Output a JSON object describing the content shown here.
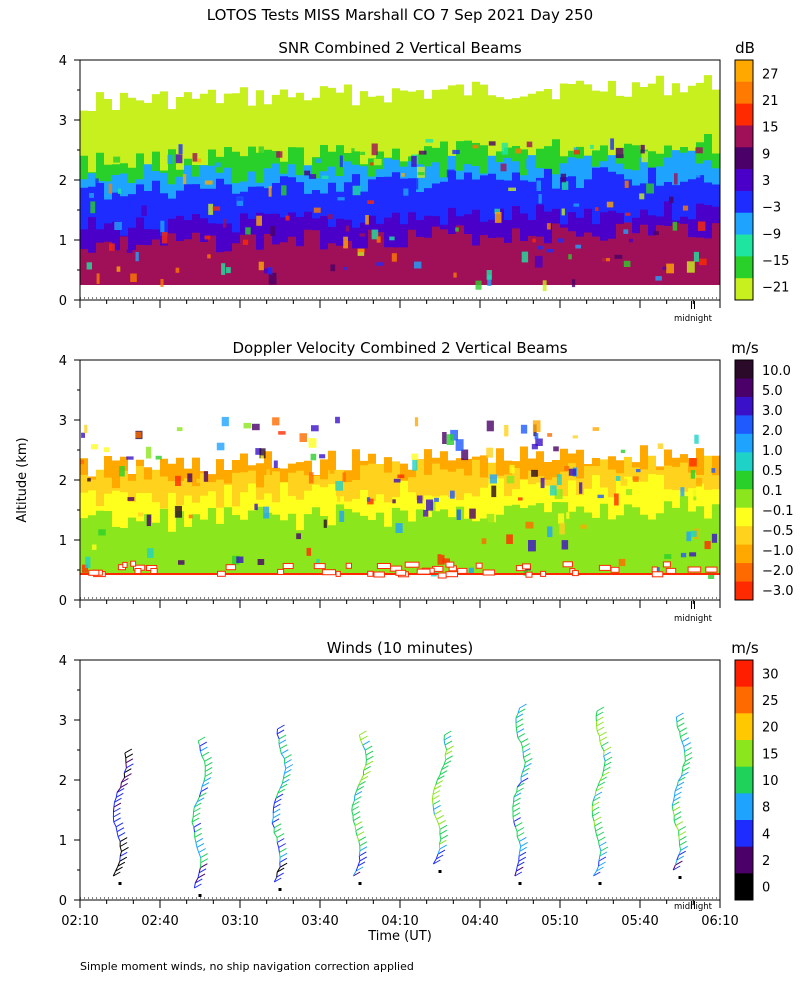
{
  "figure": {
    "title": "LOTOS Tests MISS Marshall CO   7 Sep 2021 Day 250",
    "y_axis_label": "Altitude (km)",
    "footnote": "Simple moment winds, no ship navigation correction applied"
  },
  "chart_data": [
    {
      "type": "heatmap",
      "title": "SNR Combined 2 Vertical Beams",
      "ylim": [
        0,
        4
      ],
      "yticks": [
        "0",
        "1",
        "2",
        "3",
        "4"
      ],
      "xlim": [
        "02:10",
        "06:10"
      ],
      "marker_label": "midnight",
      "colorbar": {
        "unit": "dB",
        "labels": [
          "27",
          "21",
          "15",
          "9",
          "3",
          "−3",
          "−9",
          "−15",
          "−21"
        ],
        "colors": [
          "#ffa800",
          "#ff7a00",
          "#ff2a00",
          "#a01058",
          "#4a0068",
          "#4a00c8",
          "#1e2cff",
          "#1ea4ff",
          "#1ee6a0",
          "#2ad02a",
          "#c8f01e"
        ]
      },
      "layers": [
        {
          "label": "-21 to -15 dB",
          "color": "#c8f01e",
          "alt_top_km": 3.3
        },
        {
          "label": "-15 to -9 dB",
          "color": "#2ad02a",
          "alt_top_km": 2.3
        },
        {
          "label": "-9 to -3 dB",
          "color": "#1ea4ff",
          "alt_top_km": 2.05
        },
        {
          "label": "-3 to 3 dB",
          "color": "#1e2cff",
          "alt_top_km": 1.8
        },
        {
          "label": "3 to 9 dB",
          "color": "#4a00c8",
          "alt_top_km": 1.2
        },
        {
          "label": "9 to 15 dB",
          "color": "#a01058",
          "alt_top_km": 0.9
        }
      ]
    },
    {
      "type": "heatmap",
      "title": "Doppler Velocity Combined 2 Vertical Beams",
      "ylim": [
        0,
        4
      ],
      "yticks": [
        "0",
        "1",
        "2",
        "3",
        "4"
      ],
      "xlim": [
        "02:10",
        "06:10"
      ],
      "marker_label": "midnight",
      "colorbar": {
        "unit": "m/s",
        "labels": [
          "10.0",
          "5.0",
          "3.0",
          "2.0",
          "1.0",
          "0.5",
          "0.1",
          "−0.1",
          "−0.5",
          "−1.0",
          "−2.0",
          "−3.0"
        ],
        "colors": [
          "#2a0a28",
          "#4a0068",
          "#3a10c8",
          "#1e5aff",
          "#1ea4ff",
          "#1ed2c8",
          "#2ad02a",
          "#8ce61e",
          "#ffff1e",
          "#ffd21e",
          "#ffa800",
          "#ff6a00",
          "#ff2a00"
        ]
      },
      "layers": [
        {
          "label": "-0.5 to -1.0 m/s",
          "color": "#ffa800",
          "alt_top_km": 2.2
        },
        {
          "label": "-0.1 to -0.5 m/s",
          "color": "#ffd21e",
          "alt_top_km": 2.0
        },
        {
          "label": "0.1 to -0.1 m/s",
          "color": "#ffff1e",
          "alt_top_km": 1.7
        },
        {
          "label": "0.5 to 0.1 m/s",
          "color": "#8ce61e",
          "alt_top_km": 1.3
        }
      ]
    },
    {
      "type": "scatter",
      "title": "Winds (10 minutes)",
      "ylim": [
        0,
        4
      ],
      "yticks": [
        "0",
        "1",
        "2",
        "3",
        "4"
      ],
      "xlim": [
        "02:10",
        "06:10"
      ],
      "xticks": [
        "02:10",
        "02:40",
        "03:10",
        "03:40",
        "04:10",
        "04:40",
        "05:10",
        "05:40",
        "06:10"
      ],
      "xlabel": "Time (UT)",
      "marker_label": "midnight",
      "colorbar": {
        "unit": "m/s",
        "labels": [
          "30",
          "25",
          "20",
          "15",
          "10",
          "8",
          "4",
          "2",
          "0"
        ],
        "colors": [
          "#ff1e00",
          "#ff6a00",
          "#ffc800",
          "#8ce61e",
          "#1ed25a",
          "#1ea4ff",
          "#1e2cff",
          "#4a0068",
          "#000000"
        ]
      },
      "profiles": [
        {
          "time": "02:25",
          "alt_min_km": 0.4,
          "alt_max_km": 2.45,
          "speed_ms": 3
        },
        {
          "time": "02:55",
          "alt_min_km": 0.2,
          "alt_max_km": 2.65,
          "speed_ms": 10
        },
        {
          "time": "03:25",
          "alt_min_km": 0.3,
          "alt_max_km": 2.85,
          "speed_ms": 9
        },
        {
          "time": "03:55",
          "alt_min_km": 0.4,
          "alt_max_km": 2.75,
          "speed_ms": 12
        },
        {
          "time": "04:25",
          "alt_min_km": 0.6,
          "alt_max_km": 2.75,
          "speed_ms": 13
        },
        {
          "time": "04:55",
          "alt_min_km": 0.4,
          "alt_max_km": 3.2,
          "speed_ms": 11
        },
        {
          "time": "05:25",
          "alt_min_km": 0.4,
          "alt_max_km": 3.15,
          "speed_ms": 13
        },
        {
          "time": "05:55",
          "alt_min_km": 0.5,
          "alt_max_km": 3.05,
          "speed_ms": 12
        }
      ]
    }
  ]
}
